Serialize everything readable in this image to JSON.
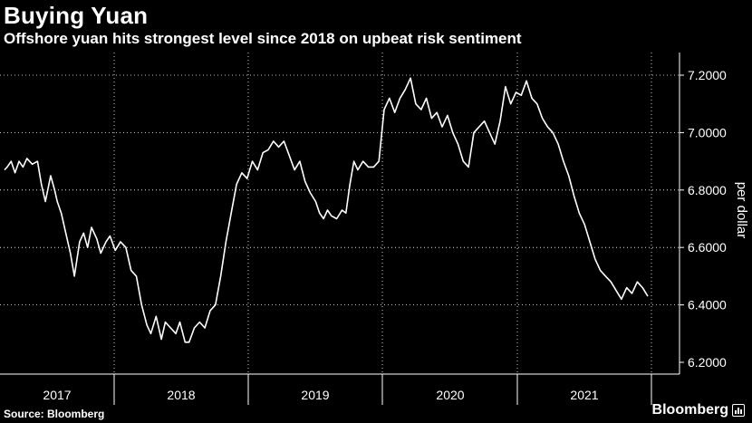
{
  "title": "Buying Yuan",
  "subtitle": "Offshore yuan hits strongest level since 2018 on upbeat risk sentiment",
  "source": "Source: Bloomberg",
  "brand": "Bloomberg",
  "colors": {
    "background": "#000000",
    "line": "#ffffff",
    "grid": "#ffffff"
  },
  "chart_data": {
    "type": "line",
    "ylabel": "per dollar",
    "ylim": [
      6.2,
      7.25
    ],
    "yticks": [
      "7.2000",
      "7.0000",
      "6.8000",
      "6.6000",
      "6.4000",
      "6.2000"
    ],
    "ytick_values": [
      7.2,
      7.0,
      6.8,
      6.6,
      6.4,
      6.2
    ],
    "xlim": [
      2017.0,
      2022.0
    ],
    "xticks": [
      "2017",
      "2018",
      "2019",
      "2020",
      "2021"
    ],
    "grid": "dotted horizontal and vertical",
    "series": [
      {
        "x": [
          2017.0,
          2017.02,
          2017.05,
          2017.08,
          2017.11,
          2017.14,
          2017.17,
          2017.21,
          2017.25,
          2017.28,
          2017.31,
          2017.35,
          2017.38,
          2017.4,
          2017.43,
          2017.46,
          2017.5,
          2017.53,
          2017.57,
          2017.6,
          2017.63,
          2017.66,
          2017.7,
          2017.73,
          2017.77,
          2017.8,
          2017.84,
          2017.88,
          2017.92,
          2017.96,
          2018.0,
          2018.04,
          2018.08,
          2018.11,
          2018.15,
          2018.19,
          2018.22,
          2018.26,
          2018.3,
          2018.33,
          2018.37,
          2018.4,
          2018.44,
          2018.48,
          2018.52,
          2018.56,
          2018.6,
          2018.64,
          2018.68,
          2018.72,
          2018.76,
          2018.8,
          2018.84,
          2018.88,
          2018.92,
          2018.96,
          2019.0,
          2019.04,
          2019.08,
          2019.12,
          2019.16,
          2019.2,
          2019.24,
          2019.28,
          2019.32,
          2019.36,
          2019.39,
          2019.42,
          2019.45,
          2019.48,
          2019.52,
          2019.56,
          2019.59,
          2019.62,
          2019.65,
          2019.68,
          2019.72,
          2019.76,
          2019.8,
          2019.84,
          2019.88,
          2019.92,
          2019.96,
          2020.0,
          2020.04,
          2020.08,
          2020.12,
          2020.16,
          2020.2,
          2020.24,
          2020.28,
          2020.32,
          2020.36,
          2020.4,
          2020.44,
          2020.48,
          2020.52,
          2020.56,
          2020.6,
          2020.64,
          2020.68,
          2020.72,
          2020.76,
          2020.8,
          2020.84,
          2020.88,
          2020.92,
          2020.96,
          2021.0,
          2021.04,
          2021.08,
          2021.12,
          2021.16,
          2021.2,
          2021.24,
          2021.28,
          2021.32,
          2021.36,
          2021.4,
          2021.44,
          2021.48,
          2021.52,
          2021.56,
          2021.6,
          2021.64,
          2021.68,
          2021.72,
          2021.76,
          2021.8,
          2021.84,
          2021.88
        ],
        "y": [
          6.87,
          6.88,
          6.9,
          6.86,
          6.9,
          6.88,
          6.91,
          6.89,
          6.9,
          6.82,
          6.76,
          6.85,
          6.8,
          6.76,
          6.72,
          6.66,
          6.58,
          6.5,
          6.62,
          6.65,
          6.6,
          6.67,
          6.63,
          6.58,
          6.62,
          6.64,
          6.59,
          6.62,
          6.6,
          6.52,
          6.5,
          6.4,
          6.33,
          6.3,
          6.36,
          6.28,
          6.34,
          6.32,
          6.3,
          6.34,
          6.27,
          6.27,
          6.32,
          6.34,
          6.32,
          6.38,
          6.4,
          6.5,
          6.62,
          6.72,
          6.82,
          6.86,
          6.84,
          6.9,
          6.87,
          6.93,
          6.94,
          6.97,
          6.95,
          6.97,
          6.92,
          6.87,
          6.9,
          6.83,
          6.79,
          6.76,
          6.72,
          6.7,
          6.73,
          6.71,
          6.7,
          6.73,
          6.72,
          6.82,
          6.9,
          6.87,
          6.9,
          6.88,
          6.88,
          6.9,
          7.08,
          7.12,
          7.07,
          7.12,
          7.15,
          7.19,
          7.1,
          7.08,
          7.12,
          7.05,
          7.07,
          7.02,
          7.06,
          7.0,
          6.96,
          6.9,
          6.88,
          7.0,
          7.02,
          7.04,
          7.0,
          6.96,
          7.04,
          7.16,
          7.1,
          7.14,
          7.13,
          7.18,
          7.12,
          7.1,
          7.05,
          7.02,
          7.0,
          6.96,
          6.9,
          6.85,
          6.78,
          6.72,
          6.68,
          6.62,
          6.56,
          6.52,
          6.5,
          6.48,
          6.45,
          6.42,
          6.46,
          6.44,
          6.48,
          6.46,
          6.43
        ]
      }
    ]
  }
}
